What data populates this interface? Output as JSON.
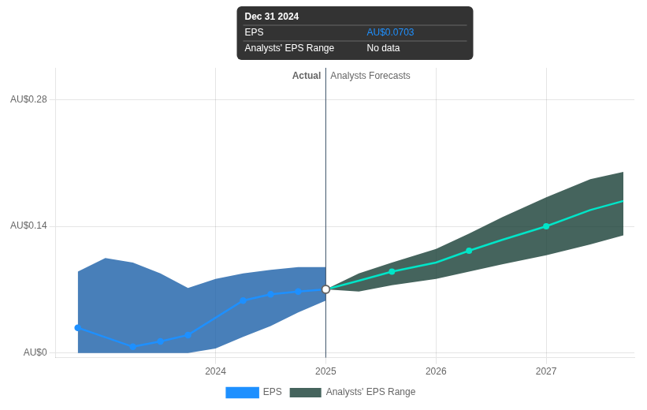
{
  "chart_data": {
    "type": "line",
    "series": [
      {
        "type": "band",
        "color": "#1a5fa8",
        "x": [
          2022.75,
          2023.0,
          2023.25,
          2023.5,
          2023.75,
          2024.0,
          2024.25,
          2024.5,
          2024.75,
          2025.0
        ],
        "lower": [
          0.0,
          0.0,
          0.0,
          0.0,
          0.0,
          0.005,
          0.018,
          0.03,
          0.045,
          0.058
        ],
        "upper": [
          0.09,
          0.105,
          0.1,
          0.088,
          0.072,
          0.082,
          0.088,
          0.092,
          0.095,
          0.095
        ]
      },
      {
        "name": "Analysts' EPS Range",
        "type": "band",
        "color": "#173d35",
        "x": [
          2025.0,
          2025.3,
          2025.6,
          2026.0,
          2026.3,
          2026.6,
          2027.0,
          2027.4,
          2027.7
        ],
        "lower": [
          0.0703,
          0.068,
          0.075,
          0.082,
          0.09,
          0.098,
          0.108,
          0.12,
          0.13
        ],
        "upper": [
          0.0703,
          0.088,
          0.1,
          0.115,
          0.132,
          0.15,
          0.172,
          0.192,
          0.2
        ]
      },
      {
        "name": "EPS",
        "type": "line",
        "marker": "circle",
        "color": "#1e90ff",
        "x": [
          2022.75,
          2023.25,
          2023.5,
          2023.75,
          2024.25,
          2024.5,
          2024.75,
          2025.0
        ],
        "values": [
          0.028,
          0.007,
          0.013,
          0.02,
          0.058,
          0.065,
          0.068,
          0.0703
        ]
      },
      {
        "type": "line",
        "marker": "none",
        "color": "#00e5c8",
        "x": [
          2025.0,
          2025.3,
          2025.6,
          2026.0,
          2026.3,
          2026.6,
          2027.0,
          2027.4,
          2027.7
        ],
        "values": [
          0.0703,
          0.08,
          0.09,
          0.1,
          0.113,
          0.125,
          0.14,
          0.158,
          0.168
        ]
      },
      {
        "type": "scatter",
        "marker": "circle",
        "color": "#00e5c8",
        "x": [
          2025.6,
          2026.3,
          2027.0
        ],
        "values": [
          0.09,
          0.113,
          0.14
        ]
      },
      {
        "type": "scatter",
        "marker": "circle_open",
        "x": [
          2025.0
        ],
        "values": [
          0.0703
        ]
      }
    ],
    "xlim": [
      2022.55,
      2027.8
    ],
    "xticks": [
      2024,
      2025,
      2026,
      2027
    ],
    "ylim": [
      -0.005,
      0.315
    ],
    "yticks": [
      {
        "value": 0,
        "label": "AU$0"
      },
      {
        "value": 0.14,
        "label": "AU$0.14"
      },
      {
        "value": 0.28,
        "label": "AU$0.28"
      }
    ],
    "grid": true,
    "legend": "bottom",
    "annotations": [
      {
        "type": "vline",
        "x": 2025.0,
        "color": "#3a5068",
        "labels": [
          "Actual",
          "Analysts Forecasts"
        ]
      },
      {
        "type": "box",
        "title": "Dec 31 2024",
        "rows": [
          {
            "label": "EPS",
            "value": 0.0703,
            "text": "AU$0.0703",
            "color": "#1e90ff"
          },
          {
            "label": "Analysts' EPS Range",
            "text": "No data"
          }
        ]
      }
    ]
  }
}
